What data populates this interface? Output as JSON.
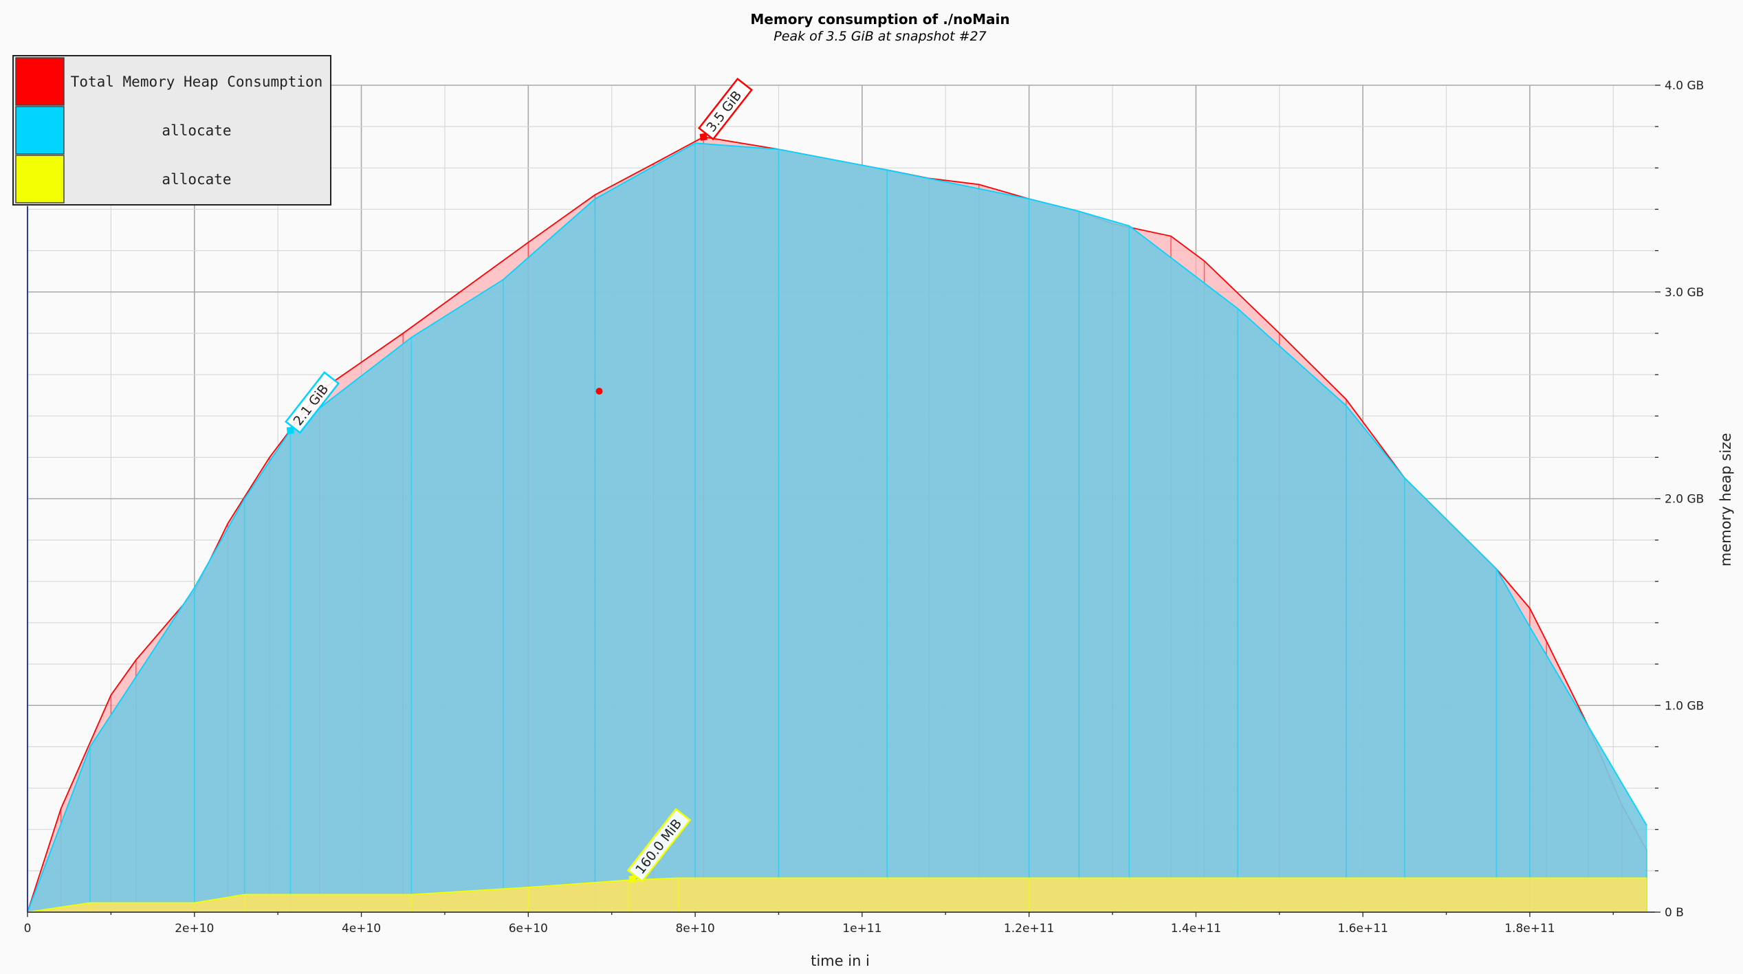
{
  "chart_data": {
    "type": "area",
    "title": "Memory consumption of ./noMain",
    "subtitle": "Peak of 3.5 GiB at snapshot #27",
    "xlabel": "time in i",
    "ylabel": "memory heap size",
    "xlim": [
      0,
      195000000000.0
    ],
    "ylim": [
      0,
      4.0
    ],
    "x_ticks": [
      0,
      20000000000.0,
      40000000000.0,
      60000000000.0,
      80000000000.0,
      100000000000.0,
      120000000000.0,
      140000000000.0,
      160000000000.0,
      180000000000.0
    ],
    "x_tick_labels": [
      "0",
      "2e+10",
      "4e+10",
      "6e+10",
      "8e+10",
      "1e+11",
      "1.2e+11",
      "1.4e+11",
      "1.6e+11",
      "1.8e+11"
    ],
    "y_ticks": [
      0,
      1.0,
      2.0,
      3.0,
      4.0
    ],
    "y_tick_labels": [
      "0 B",
      "1.0 GB",
      "2.0 GB",
      "3.0 GB",
      "4.0 GB"
    ],
    "y_axis_side": "right",
    "grid": true,
    "legend_position": "top-left",
    "legend": [
      {
        "label": "Total Memory Heap Consumption",
        "color": "#ff0000"
      },
      {
        "label": "allocate",
        "color": "#00d4ff"
      },
      {
        "label": "allocate",
        "color": "#f2ff00"
      }
    ],
    "series": [
      {
        "name": "Total Memory Heap Consumption",
        "color": "#ff0000",
        "fill": "#ffb3b8",
        "x": [
          0,
          4000000000.0,
          10000000000.0,
          13000000000.0,
          20000000000.0,
          24000000000.0,
          29000000000.0,
          35000000000.0,
          45000000000.0,
          60000000000.0,
          68000000000.0,
          75000000000.0,
          81000000000.0,
          90000000000.0,
          103000000000.0,
          108000000000.0,
          114000000000.0,
          120000000000.0,
          126000000000.0,
          130000000000.0,
          137000000000.0,
          141000000000.0,
          150000000000.0,
          158000000000.0,
          165000000000.0,
          176000000000.0,
          180000000000.0,
          182000000000.0,
          187000000000.0,
          191000000000.0,
          194000000000.0
        ],
        "y": [
          0,
          0.5,
          1.05,
          1.22,
          1.55,
          1.88,
          2.2,
          2.52,
          2.8,
          3.24,
          3.47,
          3.62,
          3.75,
          3.69,
          3.59,
          3.55,
          3.52,
          3.45,
          3.39,
          3.33,
          3.27,
          3.15,
          2.8,
          2.48,
          2.1,
          1.66,
          1.47,
          1.31,
          0.9,
          0.52,
          0.3
        ]
      },
      {
        "name": "allocate",
        "color": "#00d4ff",
        "fill": "#79c9e1",
        "x": [
          0,
          7500000000.0,
          20000000000.0,
          26000000000.0,
          31500000000.0,
          46000000000.0,
          57000000000.0,
          68000000000.0,
          80000000000.0,
          90000000000.0,
          103000000000.0,
          120000000000.0,
          126000000000.0,
          132000000000.0,
          145000000000.0,
          158000000000.0,
          165000000000.0,
          176000000000.0,
          180000000000.0,
          194000000000.0
        ],
        "y": [
          0,
          0.8,
          1.57,
          2.0,
          2.33,
          2.78,
          3.06,
          3.45,
          3.72,
          3.69,
          3.59,
          3.45,
          3.39,
          3.32,
          2.92,
          2.45,
          2.1,
          1.66,
          1.38,
          0.42
        ]
      },
      {
        "name": "allocate",
        "color": "#f2ff00",
        "fill": "#f8e268",
        "x": [
          0,
          7500000000.0,
          20000000000.0,
          26000000000.0,
          46000000000.0,
          60000000000.0,
          72000000000.0,
          78000000000.0,
          120000000000.0,
          194000000000.0
        ],
        "y": [
          0,
          0.045,
          0.045,
          0.085,
          0.085,
          0.12,
          0.155,
          0.165,
          0.165,
          0.165
        ]
      }
    ],
    "markers": [
      {
        "series": 0,
        "label": "3.5 GiB",
        "x": 81000000000.0,
        "y": 3.75,
        "color": "#ff0000"
      },
      {
        "series": 1,
        "label": "2.1 GiB",
        "x": 31500000000.0,
        "y": 2.33,
        "color": "#00d4ff"
      },
      {
        "series": 2,
        "label": "160.0 MiB",
        "x": 72500000000.0,
        "y": 0.16,
        "color": "#f2ff00"
      }
    ],
    "stray_point": {
      "x": 68500000000.0,
      "y": 2.52,
      "color": "#ff0000"
    }
  }
}
